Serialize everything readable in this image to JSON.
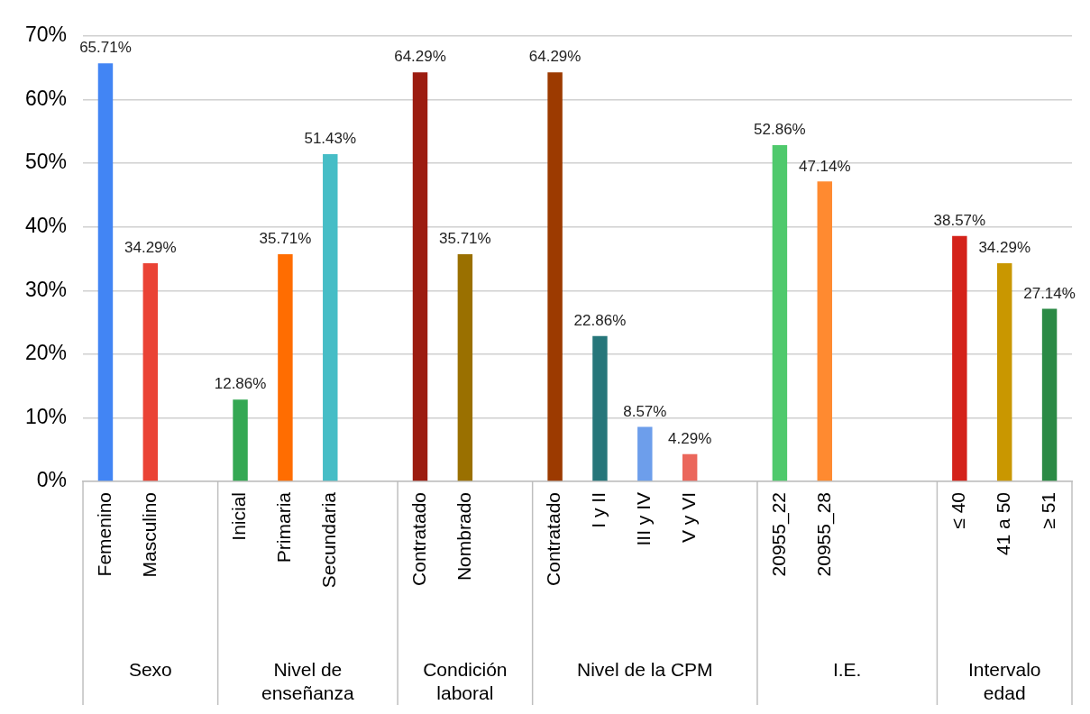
{
  "chart_data": {
    "type": "bar",
    "categories": [
      "Femenino",
      "Masculino",
      null,
      "Inicial",
      "Primaria",
      "Secundaria",
      null,
      "Contratado",
      "Nombrado",
      null,
      "Contratado",
      "I y II",
      "III y IV",
      "V y VI",
      null,
      "20955_22",
      "20955_28",
      null,
      null,
      "≤ 40",
      "41 a 50",
      "≥ 51"
    ],
    "values": [
      65.71,
      34.29,
      null,
      12.86,
      35.71,
      51.43,
      null,
      64.29,
      35.71,
      null,
      64.29,
      22.86,
      8.57,
      4.29,
      null,
      52.86,
      47.14,
      null,
      null,
      38.57,
      34.29,
      27.14
    ],
    "colors": [
      "#4285f4",
      "#ea4335",
      null,
      "#34a853",
      "#ff6d01",
      "#46bdc6",
      null,
      "#9c1c10",
      "#9a7000",
      null,
      "#9c3a00",
      "#26767a",
      "#6d9eeb",
      "#eb675c",
      null,
      "#4fc96c",
      "#ff8a30",
      null,
      null,
      "#d4221a",
      "#c99700",
      "#2b8a45"
    ],
    "annotations": [
      "Sexo",
      "Nivel de\nenseñanza",
      "Condición\nlaboral",
      "Nivel de la CPM",
      "I.E.",
      "Intervalo\nedad"
    ],
    "ylim": [
      0,
      70
    ],
    "yticks": [
      {
        "value": 0,
        "label": "0%"
      },
      {
        "value": 10,
        "label": "10%"
      },
      {
        "value": 20,
        "label": "20%"
      },
      {
        "value": 30,
        "label": "30%"
      },
      {
        "value": 40,
        "label": "40%"
      },
      {
        "value": 50,
        "label": "50%"
      },
      {
        "value": 60,
        "label": "60%"
      },
      {
        "value": 70,
        "label": "70%"
      }
    ],
    "value_labels": [
      "65.71%",
      "34.29%",
      null,
      "12.86%",
      "35.71%",
      "51.43%",
      null,
      "64.29%",
      "35.71%",
      null,
      "64.29%",
      "22.86%",
      "8.57%",
      "4.29%",
      null,
      "52.86%",
      "47.14%",
      null,
      null,
      "38.57%",
      "34.29%",
      "27.14%"
    ],
    "grid": "y",
    "legend": false
  }
}
